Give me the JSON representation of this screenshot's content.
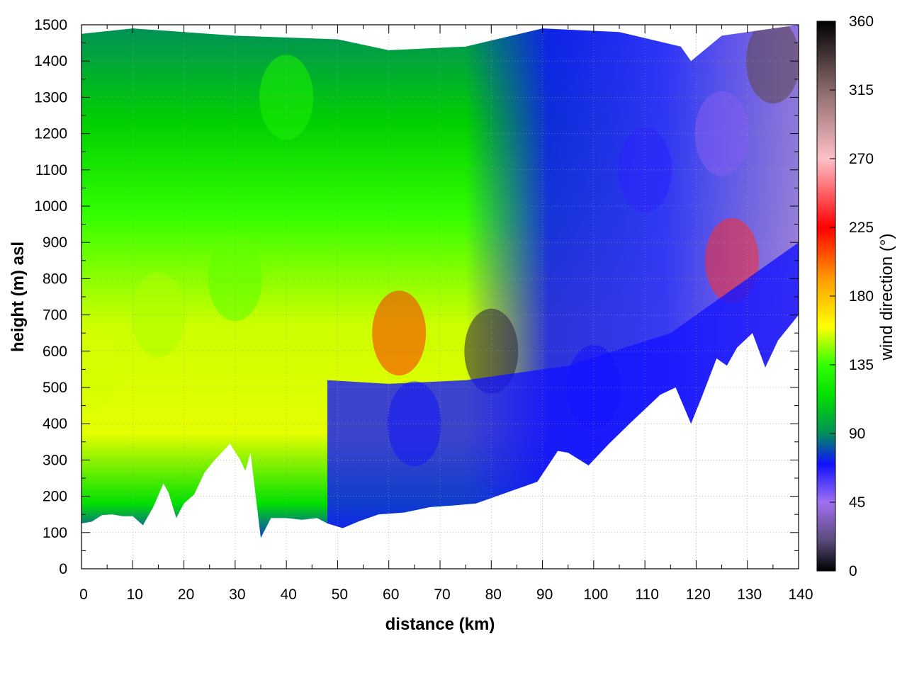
{
  "chart_data": {
    "type": "heatmap",
    "title": "",
    "xlabel": "distance (km)",
    "ylabel": "height (m) asl",
    "colorbar_label": "wind direction (°)",
    "xlim": [
      0,
      140
    ],
    "ylim": [
      0,
      1500
    ],
    "clim": [
      0,
      360
    ],
    "x_ticks": [
      "0",
      "10",
      "20",
      "30",
      "40",
      "50",
      "60",
      "70",
      "80",
      "90",
      "100",
      "110",
      "120",
      "130",
      "140"
    ],
    "y_ticks": [
      "0",
      "100",
      "200",
      "300",
      "400",
      "500",
      "600",
      "700",
      "800",
      "900",
      "1000",
      "1100",
      "1200",
      "1300",
      "1400",
      "1500"
    ],
    "colorbar_ticks": [
      "0",
      "45",
      "90",
      "135",
      "180",
      "225",
      "270",
      "315",
      "360"
    ],
    "grid": true,
    "colormap": [
      {
        "value": 0,
        "color": "#000000"
      },
      {
        "value": 20,
        "color": "#5a4a7a"
      },
      {
        "value": 45,
        "color": "#a070f0"
      },
      {
        "value": 70,
        "color": "#1010ff"
      },
      {
        "value": 90,
        "color": "#008f5a"
      },
      {
        "value": 115,
        "color": "#00e000"
      },
      {
        "value": 135,
        "color": "#33ff00"
      },
      {
        "value": 160,
        "color": "#ffff00"
      },
      {
        "value": 190,
        "color": "#ffa000"
      },
      {
        "value": 225,
        "color": "#ff0000"
      },
      {
        "value": 270,
        "color": "#ffc0c8"
      },
      {
        "value": 315,
        "color": "#8a6a6a"
      },
      {
        "value": 360,
        "color": "#000000"
      }
    ],
    "terrain_height_m": [
      {
        "x": 0,
        "y": 125
      },
      {
        "x": 2,
        "y": 130
      },
      {
        "x": 4,
        "y": 148
      },
      {
        "x": 6,
        "y": 150
      },
      {
        "x": 8,
        "y": 145
      },
      {
        "x": 10,
        "y": 145
      },
      {
        "x": 12,
        "y": 120
      },
      {
        "x": 14,
        "y": 170
      },
      {
        "x": 16,
        "y": 235
      },
      {
        "x": 17,
        "y": 210
      },
      {
        "x": 18.5,
        "y": 140
      },
      {
        "x": 20,
        "y": 180
      },
      {
        "x": 22,
        "y": 205
      },
      {
        "x": 24,
        "y": 265
      },
      {
        "x": 26,
        "y": 300
      },
      {
        "x": 29,
        "y": 345
      },
      {
        "x": 31,
        "y": 300
      },
      {
        "x": 32,
        "y": 270
      },
      {
        "x": 33,
        "y": 320
      },
      {
        "x": 35,
        "y": 85
      },
      {
        "x": 37,
        "y": 140
      },
      {
        "x": 40,
        "y": 140
      },
      {
        "x": 43,
        "y": 135
      },
      {
        "x": 46,
        "y": 140
      },
      {
        "x": 48,
        "y": 125
      },
      {
        "x": 51,
        "y": 112
      },
      {
        "x": 54,
        "y": 130
      },
      {
        "x": 58,
        "y": 150
      },
      {
        "x": 63,
        "y": 155
      },
      {
        "x": 68,
        "y": 170
      },
      {
        "x": 73,
        "y": 175
      },
      {
        "x": 77,
        "y": 180
      },
      {
        "x": 81,
        "y": 200
      },
      {
        "x": 85,
        "y": 220
      },
      {
        "x": 89,
        "y": 240
      },
      {
        "x": 93,
        "y": 325
      },
      {
        "x": 95,
        "y": 320
      },
      {
        "x": 99,
        "y": 285
      },
      {
        "x": 103,
        "y": 345
      },
      {
        "x": 107,
        "y": 400
      },
      {
        "x": 110,
        "y": 440
      },
      {
        "x": 113,
        "y": 480
      },
      {
        "x": 116,
        "y": 500
      },
      {
        "x": 119,
        "y": 400
      },
      {
        "x": 121,
        "y": 470
      },
      {
        "x": 124,
        "y": 580
      },
      {
        "x": 126,
        "y": 560
      },
      {
        "x": 128,
        "y": 610
      },
      {
        "x": 131,
        "y": 650
      },
      {
        "x": 133.5,
        "y": 555
      },
      {
        "x": 136,
        "y": 630
      },
      {
        "x": 140,
        "y": 700
      }
    ],
    "model_top_m": [
      {
        "x": 0,
        "y": 1475
      },
      {
        "x": 10,
        "y": 1490
      },
      {
        "x": 30,
        "y": 1470
      },
      {
        "x": 50,
        "y": 1460
      },
      {
        "x": 60,
        "y": 1430
      },
      {
        "x": 75,
        "y": 1440
      },
      {
        "x": 90,
        "y": 1490
      },
      {
        "x": 105,
        "y": 1480
      },
      {
        "x": 117,
        "y": 1440
      },
      {
        "x": 119,
        "y": 1400
      },
      {
        "x": 125,
        "y": 1470
      },
      {
        "x": 140,
        "y": 1500
      }
    ],
    "field_description_samples": [
      {
        "x": 2,
        "y": 550,
        "value": 155
      },
      {
        "x": 15,
        "y": 700,
        "value": 150
      },
      {
        "x": 30,
        "y": 800,
        "value": 140
      },
      {
        "x": 40,
        "y": 1300,
        "value": 125
      },
      {
        "x": 62,
        "y": 650,
        "value": 215
      },
      {
        "x": 65,
        "y": 400,
        "value": 75
      },
      {
        "x": 80,
        "y": 600,
        "value": 10
      },
      {
        "x": 100,
        "y": 500,
        "value": 70
      },
      {
        "x": 110,
        "y": 1100,
        "value": 65
      },
      {
        "x": 125,
        "y": 1200,
        "value": 50
      },
      {
        "x": 127,
        "y": 850,
        "value": 235
      },
      {
        "x": 135,
        "y": 1400,
        "value": 330
      }
    ]
  }
}
